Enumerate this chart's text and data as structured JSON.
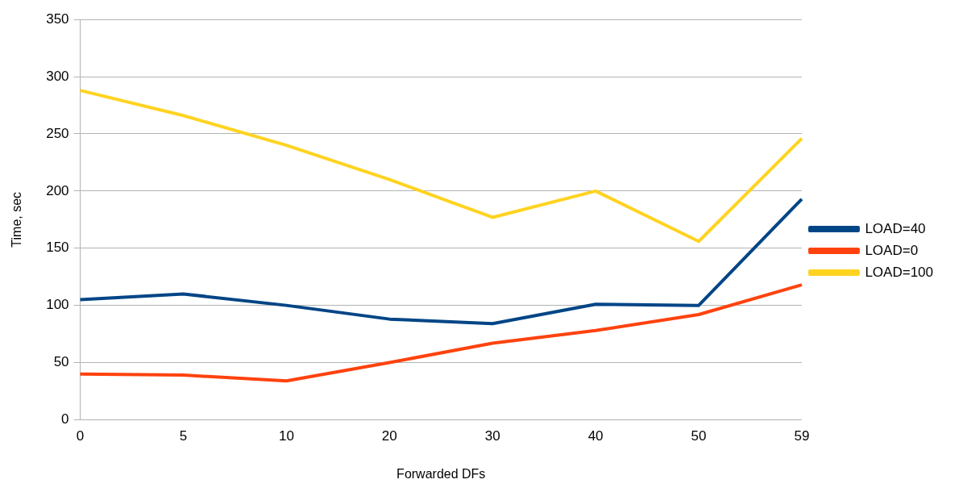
{
  "chart_data": {
    "type": "line",
    "xlabel": "Forwarded DFs",
    "ylabel": "Time, sec",
    "categories": [
      "0",
      "5",
      "10",
      "20",
      "30",
      "40",
      "50",
      "59"
    ],
    "series": [
      {
        "name": "LOAD=40",
        "color": "#004586",
        "values": [
          105,
          110,
          100,
          88,
          84,
          101,
          100,
          193
        ]
      },
      {
        "name": "LOAD=0",
        "color": "#ff420e",
        "values": [
          40,
          39,
          34,
          50,
          67,
          78,
          92,
          118
        ]
      },
      {
        "name": "LOAD=100",
        "color": "#ffd320",
        "values": [
          288,
          266,
          240,
          210,
          177,
          200,
          156,
          246
        ]
      }
    ],
    "ylim": [
      0,
      350
    ],
    "yticks": [
      0,
      50,
      100,
      150,
      200,
      250,
      300,
      350
    ],
    "grid": "y",
    "legend": "right",
    "marker": "none",
    "line_style": "solid"
  }
}
